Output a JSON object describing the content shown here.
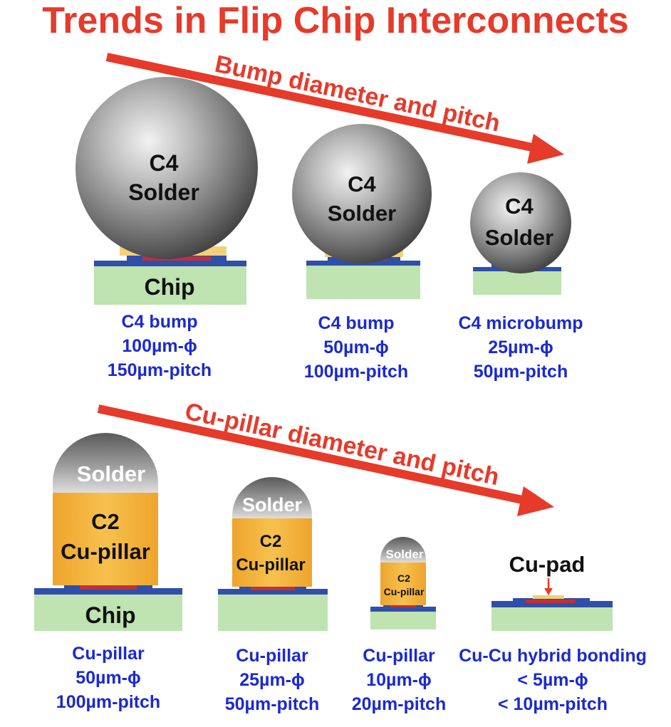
{
  "title": "Trends in Flip Chip Interconnects",
  "arrows": {
    "top": "Bump diameter and pitch",
    "bottom": "Cu-pillar diameter and pitch"
  },
  "labels": {
    "c4": "C4",
    "solder": "Solder",
    "chip": "Chip",
    "c2": "C2",
    "cu_pillar": "Cu-pillar",
    "cu_pad": "Cu-pad"
  },
  "captions": {
    "c4_bump_100": [
      "C4 bump",
      "100µm-ϕ",
      "150µm-pitch"
    ],
    "c4_bump_50": [
      "C4 bump",
      "50µm-ϕ",
      "100µm-pitch"
    ],
    "c4_microbump": [
      "C4 microbump",
      "25µm-ϕ",
      "50µm-pitch"
    ],
    "cu_pillar_50": [
      "Cu-pillar",
      "50µm-ϕ",
      "100µm-pitch"
    ],
    "cu_pillar_25": [
      "Cu-pillar",
      "25µm-ϕ",
      "50µm-pitch"
    ],
    "cu_pillar_10": [
      "Cu-pillar",
      "10µm-ϕ",
      "20µm-pitch"
    ],
    "hybrid": [
      "Cu-Cu hybrid bonding",
      "< 5µm-ϕ",
      "< 10µm-pitch"
    ]
  },
  "colors": {
    "accent_red": "#e63a2a",
    "caption_blue": "#1a2ad0",
    "chip_green": "#bfe3b1",
    "pad_blue": "#2f4fa8",
    "pad_red": "#c0303a",
    "pillar_orange": "#f3b43a",
    "solder_gray": "#6b6b6b"
  }
}
